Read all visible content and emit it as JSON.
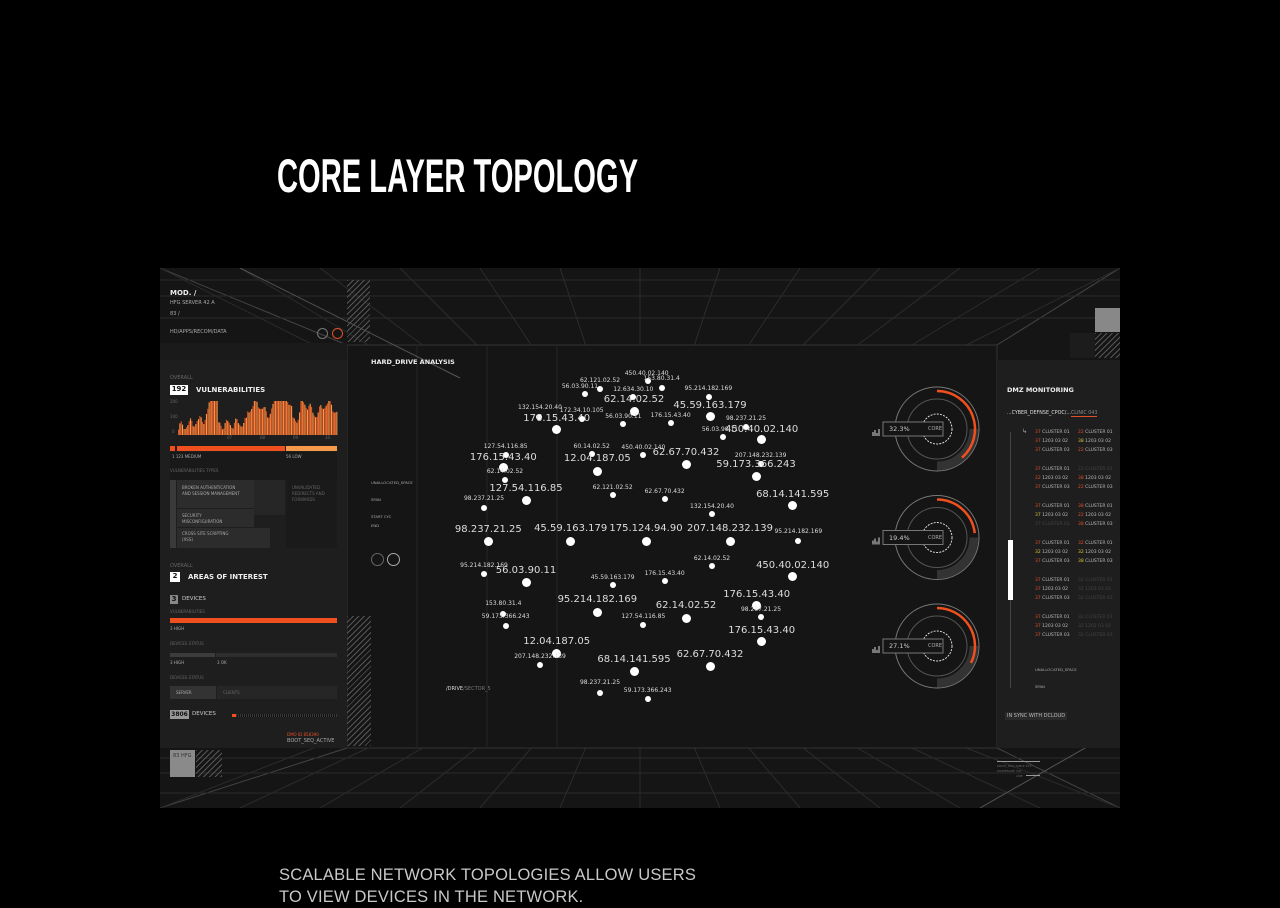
{
  "page": {
    "title": "CORE LAYER TOPOLOGY",
    "caption_line1": "SCALABLE NETWORK TOPOLOGIES ALLOW USERS",
    "caption_line2": "TO VIEW DEVICES IN THE NETWORK."
  },
  "colors": {
    "accent": "#f0501e",
    "accent_light": "#f59a4a",
    "warn": "#d8c83a",
    "panel": "#1e1e1e",
    "bg": "#151515"
  },
  "left": {
    "mod": "MOD. /",
    "server": "HFG SERVER 42 A",
    "num": "83 /",
    "path": "HD/APPS/RECOM/DATA",
    "overall1": "OVERALL",
    "vuln_count": "192",
    "vuln_label": "VULNERABILITIES",
    "hist_y": [
      "200",
      "100",
      "0"
    ],
    "hist_x": [
      "07",
      "08",
      "09",
      "10"
    ],
    "medium": "1 123 MEDIUM",
    "low": "56 LOW",
    "types_label": "VULNERABILITIES TYPES",
    "types": [
      "BROKEN AUTHENTICATION AND SESSION MANAGEMENT",
      "SECURITY MISCONFIGURATION",
      "CROSS SITE SCRIPTING (XSS)",
      "UNVALIDATED REDIRECTS AND FORWARDS"
    ],
    "overall2": "OVERALL",
    "areas_count": "2",
    "areas_label": "AREAS OF INTEREST",
    "devices_count": "3",
    "devices_label": "DEVICES",
    "vulns_small": "VULNERABILITIES",
    "high1": "3 HIGH",
    "status1": "DEVICES STATUS",
    "high2": "3 HIGH",
    "ok": "3 OK",
    "status2": "DEVICES STATUS",
    "tab_server": "SERVER",
    "tab_clients": "CLIENTS",
    "total_devices": "3806",
    "total_label": "DEVICES",
    "total_progress": 0.04,
    "dmo": "DMO ID 858390",
    "boot": "BOOT_SEQ_ACTIVE",
    "hfg": "83 HFG"
  },
  "center": {
    "title": "HARD_DRIVE ANALYSIS",
    "unallocated": "UNALLOCATED_SPACE",
    "span": "SPAN",
    "start": "START CYC",
    "end": "END",
    "path_a": "/DRIVE",
    "path_b": "/SECTOR_5"
  },
  "topology": {
    "nodes": [
      "450.40.02.140",
      "62.121.02.52",
      "153.80.31.4",
      "56.03.90.11",
      "12.634.30.10",
      "95.214.182.169",
      "62.14.02.52",
      "45.59.163.179",
      "132.154.20.40",
      "176.15.43.40",
      "172.34.10.105",
      "56.03.90.11",
      "176.15.43.40",
      "98.237.21.25",
      "450.40.02.140",
      "56.03.90.11",
      "127.54.116.85",
      "176.15.43.40",
      "60.14.02.52",
      "450.40.02.140",
      "62.67.70.432",
      "12.04.187.05",
      "207.148.232.139",
      "59.173.366.243",
      "62.14.02.52",
      "127.54.116.85",
      "98.237.21.25",
      "62.121.02.52",
      "62.67.70.432",
      "68.14.141.595",
      "132.154.20.40",
      "45.59.163.179",
      "175.124.94.90",
      "207.148.232.139",
      "98.237.21.25",
      "95.214.182.169",
      "95.214.182.169",
      "56.03.90.11",
      "62.14.02.52",
      "450.40.02.140",
      "45.59.163.179",
      "176.15.43.40",
      "95.214.182.169",
      "62.14.02.52",
      "153.80.31.4",
      "59.173.366.243",
      "176.15.43.40",
      "98.237.21.25",
      "12.04.187.05",
      "68.14.141.595",
      "62.67.70.432",
      "176.15.43.40",
      "207.148.232.139",
      "59.173.366.243",
      "98.237.21.25",
      "127.54.116.85"
    ]
  },
  "gauges": [
    {
      "value": "32.3%",
      "label": "CORE",
      "fill": 0.323
    },
    {
      "value": "19.4%",
      "label": "CORE",
      "fill": 0.194
    },
    {
      "value": "27.1%",
      "label": "CORE",
      "fill": 0.271
    }
  ],
  "right": {
    "title": "DMZ MONITORING",
    "path_a": "...CYBER_DEFNSE_CPOC/...",
    "path_b": "CLINIC 043",
    "clusters": [
      [
        [
          [
            "37",
            "red",
            "CLUSTER 01"
          ],
          [
            "22",
            "red",
            "CLUSTER 01"
          ]
        ],
        [
          [
            "37",
            "red",
            "1203 03 02"
          ],
          [
            "38",
            "yellow",
            "1203 03 02"
          ]
        ],
        [
          [
            "37",
            "red",
            "CLUSTER 03"
          ],
          [
            "22",
            "red",
            "CLUSTER 03"
          ]
        ]
      ],
      [
        [
          [
            "37",
            "red",
            "CLUSTER 01"
          ],
          [
            "22",
            "dim",
            "CLUSTER 01"
          ]
        ],
        [
          [
            "22",
            "red",
            "1203 03 02"
          ],
          [
            "38",
            "red",
            "1203 03 02"
          ]
        ],
        [
          [
            "37",
            "red",
            "CLUSTER 03"
          ],
          [
            "22",
            "red",
            "CLUSTER 03"
          ]
        ]
      ],
      [
        [
          [
            "37",
            "red",
            "CLUSTER 01"
          ],
          [
            "38",
            "red",
            "CLUSTER 01"
          ]
        ],
        [
          [
            "37",
            "yellow",
            "1203 03 02"
          ],
          [
            "22",
            "red",
            "1203 03 02"
          ]
        ],
        [
          [
            "37",
            "dim",
            "CLUSTER 03"
          ],
          [
            "38",
            "red",
            "CLUSTER 03"
          ]
        ]
      ],
      [
        [
          [
            "37",
            "red",
            "CLUSTER 01"
          ],
          [
            "32",
            "red",
            "CLUSTER 01"
          ]
        ],
        [
          [
            "32",
            "yellow",
            "1203 03 02"
          ],
          [
            "32",
            "yellow",
            "1203 03 02"
          ]
        ],
        [
          [
            "37",
            "red",
            "CLUSTER 03"
          ],
          [
            "38",
            "yellow",
            "CLUSTER 03"
          ]
        ]
      ],
      [
        [
          [
            "37",
            "red",
            "CLUSTER 01"
          ],
          [
            "32",
            "dim",
            "CLUSTER 01"
          ]
        ],
        [
          [
            "37",
            "red",
            "1203 03 02"
          ],
          [
            "32",
            "dim",
            "1203 03 02"
          ]
        ],
        [
          [
            "37",
            "red",
            "CLUSTER 03"
          ],
          [
            "32",
            "dim",
            "CLUSTER 03"
          ]
        ]
      ],
      [
        [
          [
            "37",
            "red",
            "CLUSTER 01"
          ],
          [
            "32",
            "dim",
            "CLUSTER 01"
          ]
        ],
        [
          [
            "37",
            "red",
            "1203 03 02"
          ],
          [
            "32",
            "dim",
            "1203 03 02"
          ]
        ],
        [
          [
            "37",
            "red",
            "CLUSTER 03"
          ],
          [
            "32",
            "dim",
            "CLUSTER 03"
          ]
        ]
      ]
    ],
    "unallocated": "UNALLOCATED_SPACE",
    "span": "SPAN",
    "sync": "IN SYNC WITH DCLOUD",
    "slider_position": 0.55,
    "foot1": "DRIVE_DSK_TABLE 203",
    "foot2": "MAINFRAME VOL",
    "foot3": "LINE"
  }
}
